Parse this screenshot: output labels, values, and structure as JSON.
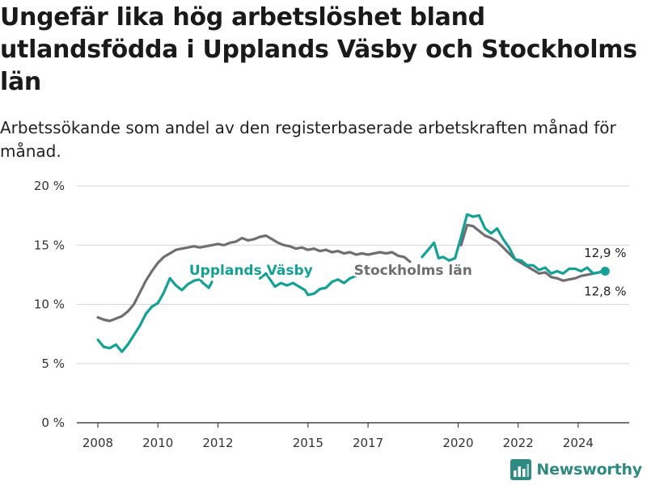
{
  "title": "Ungefär lika hög arbetslöshet bland utlandsfödda i Upplands Väsby och Stockholms län",
  "subtitle": "Arbetssökande som andel av den registerbaserade arbetskraften månad för månad.",
  "brand": "Newsworthy",
  "colors": {
    "upplands": "#14a195",
    "stockholm": "#6e6e73",
    "grid": "#d6d6d6",
    "axis": "#222222"
  },
  "chart_data": {
    "type": "line",
    "ylim": [
      0,
      20
    ],
    "xlim": [
      2007.3,
      2025.7
    ],
    "y_ticks": [
      0,
      5,
      10,
      15,
      20
    ],
    "y_tick_labels": [
      "0 %",
      "5 %",
      "10 %",
      "15 %",
      "20 %"
    ],
    "x_ticks": [
      2008,
      2010,
      2012,
      2015,
      2017,
      2020,
      2022,
      2024
    ],
    "x_tick_labels": [
      "2008",
      "2010",
      "2012",
      "2015",
      "2017",
      "2020",
      "2022",
      "2024"
    ],
    "grid": true,
    "series": [
      {
        "name": "Upplands Väsby",
        "color": "#14a195",
        "end_label": "12,8 %",
        "points": [
          [
            2008.0,
            7.0
          ],
          [
            2008.2,
            6.4
          ],
          [
            2008.4,
            6.3
          ],
          [
            2008.6,
            6.6
          ],
          [
            2008.8,
            6.0
          ],
          [
            2009.0,
            6.6
          ],
          [
            2009.2,
            7.4
          ],
          [
            2009.4,
            8.2
          ],
          [
            2009.6,
            9.2
          ],
          [
            2009.8,
            9.8
          ],
          [
            2010.0,
            10.1
          ],
          [
            2010.2,
            11.0
          ],
          [
            2010.4,
            12.2
          ],
          [
            2010.6,
            11.6
          ],
          [
            2010.8,
            11.2
          ],
          [
            2011.0,
            11.7
          ],
          [
            2011.2,
            12.0
          ],
          [
            2011.4,
            12.1
          ],
          [
            2011.5,
            11.8
          ],
          [
            2011.7,
            11.4
          ],
          [
            2011.8,
            11.9
          ],
          null,
          [
            2013.4,
            12.2
          ],
          [
            2013.6,
            12.6
          ],
          [
            2013.9,
            11.5
          ],
          [
            2014.1,
            11.8
          ],
          [
            2014.3,
            11.6
          ],
          [
            2014.5,
            11.8
          ],
          [
            2014.7,
            11.5
          ],
          [
            2014.9,
            11.2
          ],
          [
            2015.0,
            10.8
          ],
          [
            2015.2,
            10.9
          ],
          [
            2015.4,
            11.3
          ],
          [
            2015.6,
            11.4
          ],
          [
            2015.8,
            11.9
          ],
          [
            2016.0,
            12.1
          ],
          [
            2016.2,
            11.8
          ],
          [
            2016.4,
            12.2
          ],
          [
            2016.6,
            12.4
          ],
          [
            2016.8,
            12.7
          ],
          [
            2017.0,
            13.0
          ],
          [
            2017.2,
            12.5
          ],
          null,
          [
            2018.8,
            14.0
          ],
          [
            2019.0,
            14.6
          ],
          [
            2019.2,
            15.2
          ],
          [
            2019.35,
            13.9
          ],
          [
            2019.5,
            14.0
          ],
          [
            2019.7,
            13.7
          ],
          [
            2019.9,
            13.9
          ],
          [
            2020.1,
            15.7
          ],
          [
            2020.3,
            17.6
          ],
          [
            2020.5,
            17.4
          ],
          [
            2020.7,
            17.5
          ],
          [
            2020.9,
            16.4
          ],
          [
            2021.1,
            16.0
          ],
          [
            2021.3,
            16.4
          ],
          [
            2021.5,
            15.5
          ],
          [
            2021.7,
            14.8
          ],
          [
            2021.9,
            13.8
          ],
          [
            2022.1,
            13.7
          ],
          [
            2022.3,
            13.3
          ],
          [
            2022.5,
            13.3
          ],
          [
            2022.7,
            12.9
          ],
          [
            2022.9,
            13.1
          ],
          [
            2023.1,
            12.6
          ],
          [
            2023.3,
            12.8
          ],
          [
            2023.5,
            12.6
          ],
          [
            2023.7,
            13.0
          ],
          [
            2023.9,
            13.0
          ],
          [
            2024.1,
            12.8
          ],
          [
            2024.3,
            13.1
          ],
          [
            2024.5,
            12.6
          ],
          [
            2024.7,
            12.7
          ],
          [
            2024.9,
            12.8
          ]
        ]
      },
      {
        "name": "Stockholms län",
        "color": "#6e6e73",
        "end_label": "12,9 %",
        "points": [
          [
            2008.0,
            8.9
          ],
          [
            2008.2,
            8.7
          ],
          [
            2008.4,
            8.6
          ],
          [
            2008.6,
            8.8
          ],
          [
            2008.8,
            9.0
          ],
          [
            2009.0,
            9.4
          ],
          [
            2009.2,
            10.0
          ],
          [
            2009.4,
            11.0
          ],
          [
            2009.6,
            12.0
          ],
          [
            2009.8,
            12.8
          ],
          [
            2010.0,
            13.5
          ],
          [
            2010.2,
            14.0
          ],
          [
            2010.4,
            14.3
          ],
          [
            2010.6,
            14.6
          ],
          [
            2010.8,
            14.7
          ],
          [
            2011.0,
            14.8
          ],
          [
            2011.2,
            14.9
          ],
          [
            2011.4,
            14.8
          ],
          [
            2011.6,
            14.9
          ],
          [
            2011.8,
            15.0
          ],
          [
            2012.0,
            15.1
          ],
          [
            2012.2,
            15.0
          ],
          [
            2012.4,
            15.2
          ],
          [
            2012.6,
            15.3
          ],
          [
            2012.8,
            15.6
          ],
          [
            2013.0,
            15.4
          ],
          [
            2013.2,
            15.5
          ],
          [
            2013.4,
            15.7
          ],
          [
            2013.6,
            15.8
          ],
          [
            2013.8,
            15.5
          ],
          [
            2014.0,
            15.2
          ],
          [
            2014.2,
            15.0
          ],
          [
            2014.4,
            14.9
          ],
          [
            2014.6,
            14.7
          ],
          [
            2014.8,
            14.8
          ],
          [
            2015.0,
            14.6
          ],
          [
            2015.2,
            14.7
          ],
          [
            2015.4,
            14.5
          ],
          [
            2015.6,
            14.6
          ],
          [
            2015.8,
            14.4
          ],
          [
            2016.0,
            14.5
          ],
          [
            2016.2,
            14.3
          ],
          [
            2016.4,
            14.4
          ],
          [
            2016.6,
            14.2
          ],
          [
            2016.8,
            14.3
          ],
          [
            2017.0,
            14.2
          ],
          [
            2017.2,
            14.3
          ],
          [
            2017.4,
            14.4
          ],
          [
            2017.6,
            14.3
          ],
          [
            2017.8,
            14.4
          ],
          [
            2018.0,
            14.1
          ],
          [
            2018.2,
            14.0
          ],
          [
            2018.4,
            13.6
          ],
          null,
          [
            2020.1,
            15.0
          ],
          [
            2020.3,
            16.7
          ],
          [
            2020.5,
            16.6
          ],
          [
            2020.7,
            16.2
          ],
          [
            2020.9,
            15.8
          ],
          [
            2021.1,
            15.6
          ],
          [
            2021.3,
            15.3
          ],
          [
            2021.5,
            14.8
          ],
          [
            2021.7,
            14.3
          ],
          [
            2021.9,
            13.8
          ],
          [
            2022.1,
            13.5
          ],
          [
            2022.3,
            13.2
          ],
          [
            2022.5,
            12.9
          ],
          [
            2022.7,
            12.6
          ],
          [
            2022.9,
            12.7
          ],
          [
            2023.1,
            12.3
          ],
          [
            2023.3,
            12.2
          ],
          [
            2023.5,
            12.0
          ],
          [
            2023.7,
            12.1
          ],
          [
            2023.9,
            12.2
          ],
          [
            2024.1,
            12.4
          ],
          [
            2024.3,
            12.5
          ],
          [
            2024.5,
            12.6
          ],
          [
            2024.7,
            12.7
          ],
          [
            2024.9,
            12.9
          ]
        ]
      }
    ],
    "inline_labels": [
      {
        "series": "Upplands Väsby",
        "text": "Upplands Väsby",
        "x": 2013.1,
        "y": 12.9
      },
      {
        "series": "Stockholms län",
        "text": "Stockholms län",
        "x": 2018.5,
        "y": 12.9
      }
    ]
  }
}
